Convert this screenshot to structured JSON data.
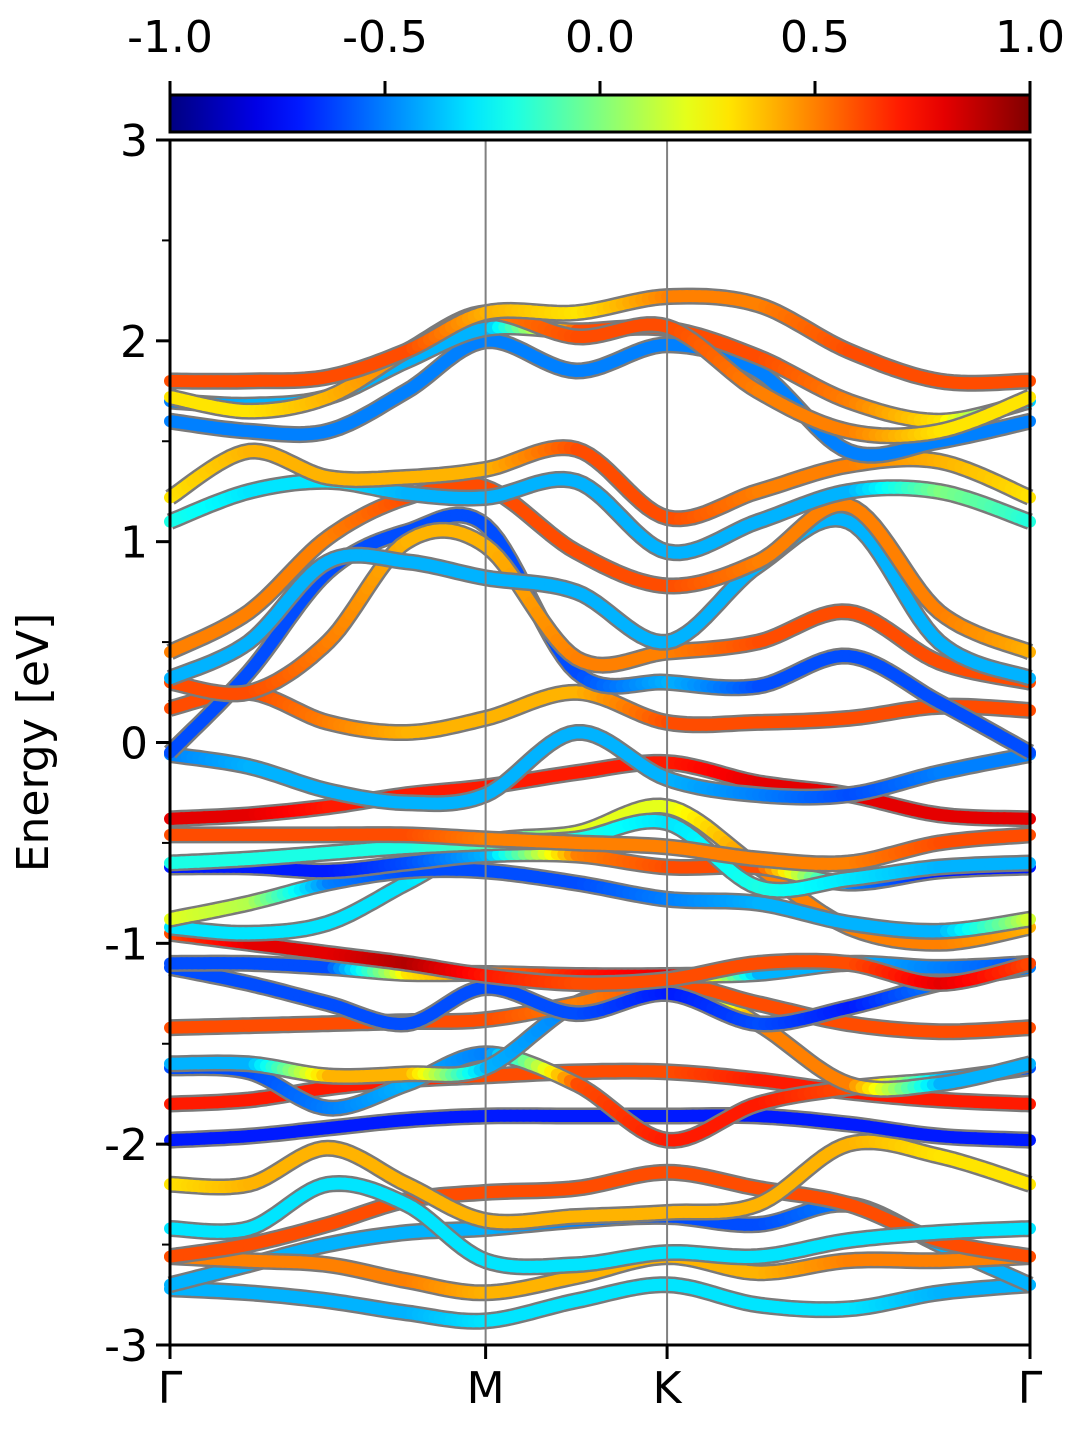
{
  "chart_data": {
    "type": "line",
    "title": "",
    "xlabel": "",
    "ylabel": "Energy [eV]",
    "ylim": [
      -3,
      3
    ],
    "y_ticks": [
      -3,
      -2,
      -1,
      0,
      1,
      2,
      3
    ],
    "y_tick_labels": [
      "-3",
      "-2",
      "-1",
      "0",
      "1",
      "2",
      "3"
    ],
    "x_ticks": [
      0,
      0.367,
      0.578,
      1.0
    ],
    "x_tick_labels": [
      "Γ",
      "M",
      "K",
      "Γ"
    ],
    "xlim": [
      0,
      1
    ],
    "high_symmetry_lines": [
      0.367,
      0.578
    ],
    "grid": false,
    "legend": "none",
    "colorbar": {
      "colormap": "jet",
      "range": [
        -1.0,
        1.0
      ],
      "ticks": [
        -1.0,
        -0.5,
        0.0,
        0.5,
        1.0
      ],
      "tick_labels": [
        "-1.0",
        "-0.5",
        "0.0",
        "0.5",
        "1.0"
      ],
      "position": "top"
    },
    "x": [
      0,
      0.0917,
      0.1835,
      0.2752,
      0.367,
      0.4725,
      0.578,
      0.6835,
      0.789,
      0.8945,
      1.0
    ],
    "series": [
      {
        "y": [
          -2.72,
          -2.74,
          -2.78,
          -2.84,
          -2.88,
          -2.78,
          -2.7,
          -2.8,
          -2.82,
          -2.74,
          -2.7
        ],
        "c": [
          -0.4,
          -0.4,
          -0.4,
          -0.4,
          -0.3,
          -0.3,
          -0.3,
          -0.3,
          -0.3,
          -0.4,
          -0.4
        ]
      },
      {
        "y": [
          -2.7,
          -2.6,
          -2.5,
          -2.44,
          -2.42,
          -2.38,
          -2.36,
          -2.4,
          -2.3,
          -2.5,
          -2.7
        ],
        "c": [
          -0.4,
          -0.4,
          -0.4,
          -0.4,
          -0.4,
          -0.5,
          -0.6,
          -0.6,
          -0.5,
          -0.4,
          -0.4
        ]
      },
      {
        "y": [
          -2.56,
          -2.58,
          -2.6,
          -2.68,
          -2.74,
          -2.66,
          -2.56,
          -2.64,
          -2.58,
          -2.58,
          -2.56
        ],
        "c": [
          0.5,
          0.5,
          0.5,
          0.5,
          0.4,
          0.4,
          0.4,
          0.4,
          0.5,
          0.5,
          0.5
        ]
      },
      {
        "y": [
          -2.56,
          -2.5,
          -2.4,
          -2.28,
          -2.24,
          -2.22,
          -2.14,
          -2.22,
          -2.3,
          -2.48,
          -2.56
        ],
        "c": [
          0.6,
          0.6,
          0.6,
          0.6,
          0.6,
          0.6,
          0.6,
          0.6,
          0.6,
          0.6,
          0.6
        ]
      },
      {
        "y": [
          -2.42,
          -2.42,
          -2.2,
          -2.3,
          -2.58,
          -2.6,
          -2.54,
          -2.56,
          -2.48,
          -2.44,
          -2.42
        ],
        "c": [
          -0.3,
          -0.3,
          -0.3,
          -0.3,
          -0.3,
          -0.3,
          -0.3,
          -0.3,
          -0.3,
          -0.3,
          -0.3
        ]
      },
      {
        "y": [
          -2.2,
          -2.2,
          -2.02,
          -2.2,
          -2.38,
          -2.36,
          -2.34,
          -2.3,
          -2.0,
          -2.06,
          -2.2
        ],
        "c": [
          0.3,
          0.4,
          0.4,
          0.4,
          0.4,
          0.4,
          0.4,
          0.4,
          0.4,
          0.3,
          0.3
        ]
      },
      {
        "y": [
          -1.98,
          -1.96,
          -1.92,
          -1.88,
          -1.86,
          -1.86,
          -1.86,
          -1.86,
          -1.9,
          -1.96,
          -1.98
        ],
        "c": [
          -0.7,
          -0.7,
          -0.7,
          -0.7,
          -0.7,
          -0.7,
          -0.7,
          -0.7,
          -0.7,
          -0.7,
          -0.7
        ]
      },
      {
        "y": [
          -1.8,
          -1.78,
          -1.72,
          -1.68,
          -1.66,
          -1.64,
          -1.64,
          -1.68,
          -1.74,
          -1.78,
          -1.8
        ],
        "c": [
          0.7,
          0.7,
          0.7,
          0.7,
          0.6,
          0.6,
          0.6,
          0.7,
          0.7,
          0.7,
          0.7
        ]
      },
      {
        "y": [
          -1.62,
          -1.64,
          -1.82,
          -1.7,
          -1.55,
          -1.7,
          -1.98,
          -1.8,
          -1.72,
          -1.68,
          -1.62
        ],
        "c": [
          -0.6,
          -0.6,
          -0.5,
          -0.4,
          -0.5,
          0.6,
          0.7,
          0.7,
          0.6,
          -0.4,
          -0.6
        ]
      },
      {
        "y": [
          -1.6,
          -1.6,
          -1.66,
          -1.65,
          -1.62,
          -1.3,
          -1.18,
          -1.4,
          -1.7,
          -1.7,
          -1.6
        ],
        "c": [
          -0.4,
          -0.4,
          0.4,
          0.4,
          -0.4,
          -0.5,
          -0.4,
          0.5,
          0.5,
          -0.4,
          -0.4
        ]
      },
      {
        "y": [
          -1.42,
          -1.41,
          -1.4,
          -1.39,
          -1.38,
          -1.3,
          -1.2,
          -1.3,
          -1.4,
          -1.44,
          -1.42
        ],
        "c": [
          0.6,
          0.6,
          0.6,
          0.6,
          0.6,
          0.5,
          0.6,
          0.6,
          0.6,
          0.6,
          0.6
        ]
      },
      {
        "y": [
          -1.12,
          -1.2,
          -1.3,
          -1.4,
          -1.22,
          -1.35,
          -1.25,
          -1.4,
          -1.32,
          -1.2,
          -1.12
        ],
        "c": [
          -0.6,
          -0.6,
          -0.6,
          -0.6,
          -0.6,
          -0.6,
          -0.7,
          -0.6,
          -0.7,
          -0.5,
          -0.5
        ]
      },
      {
        "y": [
          -1.1,
          -1.1,
          -1.12,
          -1.15,
          -1.15,
          -1.16,
          -1.16,
          -1.15,
          -1.1,
          -1.12,
          -1.1
        ],
        "c": [
          -0.6,
          -0.6,
          -0.6,
          0.3,
          0.5,
          0.7,
          0.8,
          -0.4,
          -0.4,
          -0.5,
          -0.6
        ]
      },
      {
        "y": [
          -0.95,
          -1.0,
          -1.05,
          -1.1,
          -1.16,
          -1.2,
          -1.18,
          -1.1,
          -1.1,
          -1.2,
          -1.1
        ],
        "c": [
          0.6,
          0.8,
          0.8,
          0.9,
          0.7,
          0.6,
          0.6,
          0.6,
          0.6,
          0.8,
          0.6
        ]
      },
      {
        "y": [
          -0.92,
          -0.95,
          -0.9,
          -0.7,
          -0.5,
          -0.45,
          -0.32,
          -0.62,
          -0.92,
          -1.0,
          -0.92
        ],
        "c": [
          -0.3,
          -0.3,
          -0.3,
          -0.3,
          -0.2,
          0.2,
          0.2,
          0.5,
          0.5,
          0.5,
          0.4
        ]
      },
      {
        "y": [
          -0.88,
          -0.8,
          -0.7,
          -0.64,
          -0.64,
          -0.7,
          -0.78,
          -0.8,
          -0.9,
          -0.94,
          -0.88
        ],
        "c": [
          0.2,
          0.1,
          -0.5,
          -0.6,
          -0.6,
          -0.6,
          -0.5,
          -0.4,
          -0.4,
          -0.4,
          0.2
        ]
      },
      {
        "y": [
          -0.62,
          -0.62,
          -0.64,
          -0.6,
          -0.56,
          -0.56,
          -0.62,
          -0.62,
          -0.7,
          -0.64,
          -0.62
        ],
        "c": [
          -0.7,
          -0.7,
          -0.7,
          -0.6,
          -0.4,
          0.5,
          0.6,
          0.6,
          -0.5,
          -0.7,
          -0.7
        ]
      },
      {
        "y": [
          -0.6,
          -0.58,
          -0.55,
          -0.52,
          -0.5,
          -0.48,
          -0.4,
          -0.72,
          -0.68,
          -0.62,
          -0.6
        ],
        "c": [
          -0.2,
          -0.2,
          -0.2,
          -0.2,
          -0.1,
          -0.2,
          -0.3,
          -0.2,
          -0.3,
          -0.4,
          -0.4
        ]
      },
      {
        "y": [
          -0.46,
          -0.46,
          -0.46,
          -0.46,
          -0.48,
          -0.5,
          -0.52,
          -0.58,
          -0.6,
          -0.5,
          -0.46
        ],
        "c": [
          0.6,
          0.6,
          0.6,
          0.6,
          0.5,
          0.5,
          0.5,
          0.5,
          0.5,
          0.6,
          0.6
        ]
      },
      {
        "y": [
          -0.38,
          -0.36,
          -0.32,
          -0.26,
          -0.22,
          -0.15,
          -0.1,
          -0.2,
          -0.26,
          -0.36,
          -0.38
        ],
        "c": [
          0.8,
          0.8,
          0.7,
          0.7,
          0.7,
          0.7,
          0.7,
          0.8,
          0.8,
          0.8,
          0.8
        ]
      },
      {
        "y": [
          -0.06,
          -0.12,
          -0.24,
          -0.3,
          -0.26,
          0.05,
          -0.18,
          -0.26,
          -0.26,
          -0.15,
          -0.06
        ],
        "c": [
          -0.5,
          -0.4,
          -0.4,
          -0.4,
          -0.4,
          -0.4,
          -0.4,
          -0.5,
          -0.6,
          -0.5,
          -0.5
        ]
      },
      {
        "y": [
          0.17,
          0.25,
          0.1,
          0.05,
          0.12,
          0.25,
          0.1,
          0.1,
          0.12,
          0.18,
          0.16
        ],
        "c": [
          0.6,
          0.6,
          0.5,
          0.4,
          0.4,
          0.4,
          0.6,
          0.6,
          0.6,
          0.6,
          0.6
        ]
      },
      {
        "y": [
          -0.05,
          0.35,
          0.85,
          1.05,
          1.08,
          0.35,
          0.3,
          0.28,
          0.43,
          0.2,
          -0.05
        ],
        "c": [
          -0.6,
          -0.6,
          -0.6,
          -0.6,
          -0.6,
          -0.6,
          -0.4,
          -0.6,
          -0.6,
          -0.6,
          -0.6
        ]
      },
      {
        "y": [
          0.3,
          0.25,
          0.5,
          1.0,
          0.98,
          0.42,
          0.45,
          0.5,
          0.65,
          0.4,
          0.3
        ],
        "c": [
          0.6,
          0.6,
          0.5,
          0.4,
          0.4,
          0.5,
          0.5,
          0.6,
          0.6,
          0.6,
          0.6
        ]
      },
      {
        "y": [
          0.32,
          0.5,
          0.9,
          0.9,
          0.82,
          0.75,
          0.5,
          0.88,
          1.1,
          0.5,
          0.32
        ],
        "c": [
          -0.4,
          -0.4,
          -0.4,
          -0.4,
          -0.4,
          -0.4,
          -0.4,
          -0.4,
          -0.4,
          -0.4,
          -0.4
        ]
      },
      {
        "y": [
          0.45,
          0.65,
          1.02,
          1.22,
          1.27,
          0.95,
          0.78,
          0.9,
          1.18,
          0.65,
          0.45
        ],
        "c": [
          0.5,
          0.5,
          0.5,
          0.6,
          0.6,
          0.6,
          0.6,
          0.5,
          0.5,
          0.5,
          0.4
        ]
      },
      {
        "y": [
          1.1,
          1.25,
          1.3,
          1.24,
          1.22,
          1.3,
          0.95,
          1.1,
          1.25,
          1.25,
          1.1
        ],
        "c": [
          -0.2,
          -0.3,
          -0.3,
          -0.4,
          -0.4,
          -0.4,
          -0.4,
          -0.4,
          -0.4,
          0.0,
          -0.2
        ]
      },
      {
        "y": [
          1.22,
          1.45,
          1.32,
          1.32,
          1.36,
          1.46,
          1.12,
          1.25,
          1.38,
          1.4,
          1.22
        ],
        "c": [
          0.3,
          0.4,
          0.4,
          0.4,
          0.4,
          0.6,
          0.6,
          0.5,
          0.5,
          0.4,
          0.3
        ]
      },
      {
        "y": [
          1.6,
          1.55,
          1.55,
          1.75,
          2.0,
          1.85,
          1.98,
          1.85,
          1.45,
          1.5,
          1.6
        ],
        "c": [
          -0.5,
          -0.5,
          -0.5,
          -0.5,
          -0.5,
          -0.5,
          -0.5,
          -0.5,
          -0.5,
          -0.5,
          -0.5
        ]
      },
      {
        "y": [
          1.7,
          1.68,
          1.72,
          1.9,
          2.06,
          2.05,
          2.06,
          1.92,
          1.7,
          1.6,
          1.7
        ],
        "c": [
          -0.5,
          -0.4,
          -0.4,
          -0.4,
          -0.4,
          0.6,
          0.6,
          0.6,
          0.5,
          0.3,
          -0.4
        ]
      },
      {
        "y": [
          1.72,
          1.65,
          1.72,
          1.95,
          2.14,
          2.02,
          2.07,
          1.75,
          1.55,
          1.55,
          1.72
        ],
        "c": [
          0.3,
          0.3,
          0.4,
          0.5,
          0.5,
          0.6,
          0.6,
          0.5,
          0.5,
          0.3,
          0.3
        ]
      },
      {
        "y": [
          1.8,
          1.8,
          1.82,
          1.95,
          2.14,
          2.14,
          2.22,
          2.18,
          1.95,
          1.8,
          1.8
        ],
        "c": [
          0.6,
          0.6,
          0.6,
          0.6,
          0.4,
          0.3,
          0.5,
          0.5,
          0.6,
          0.6,
          0.6
        ]
      }
    ]
  }
}
